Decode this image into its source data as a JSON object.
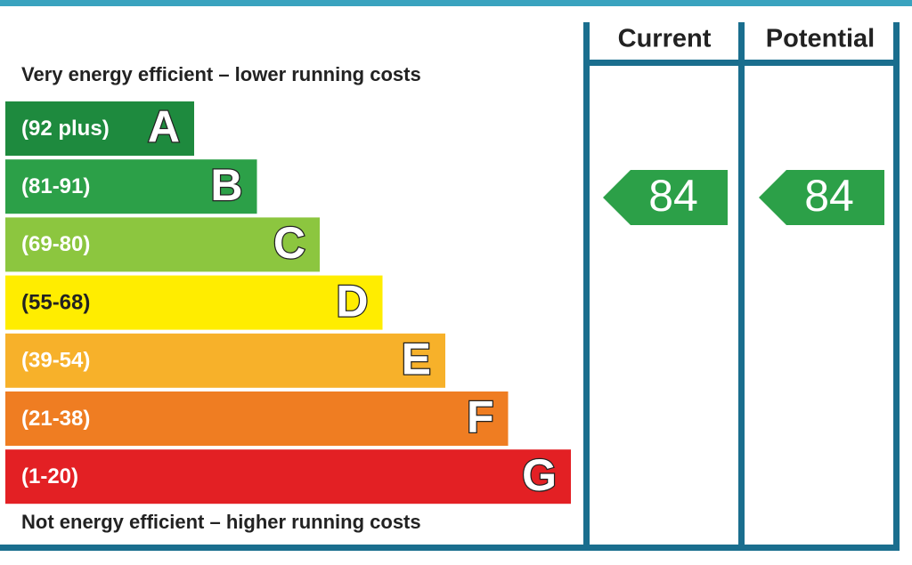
{
  "header": {
    "top_text": "Very energy efficient – lower running costs",
    "bottom_text": "Not energy efficient – higher running costs"
  },
  "columns": [
    "Current",
    "Potential"
  ],
  "bands": [
    {
      "range": "(92 plus)",
      "letter": "A"
    },
    {
      "range": "(81-91)",
      "letter": "B"
    },
    {
      "range": "(69-80)",
      "letter": "C"
    },
    {
      "range": "(55-68)",
      "letter": "D"
    },
    {
      "range": "(39-54)",
      "letter": "E"
    },
    {
      "range": "(21-38)",
      "letter": "F"
    },
    {
      "range": "(1-20)",
      "letter": "G"
    }
  ],
  "ratings": {
    "current": 84,
    "potential": 84
  }
}
